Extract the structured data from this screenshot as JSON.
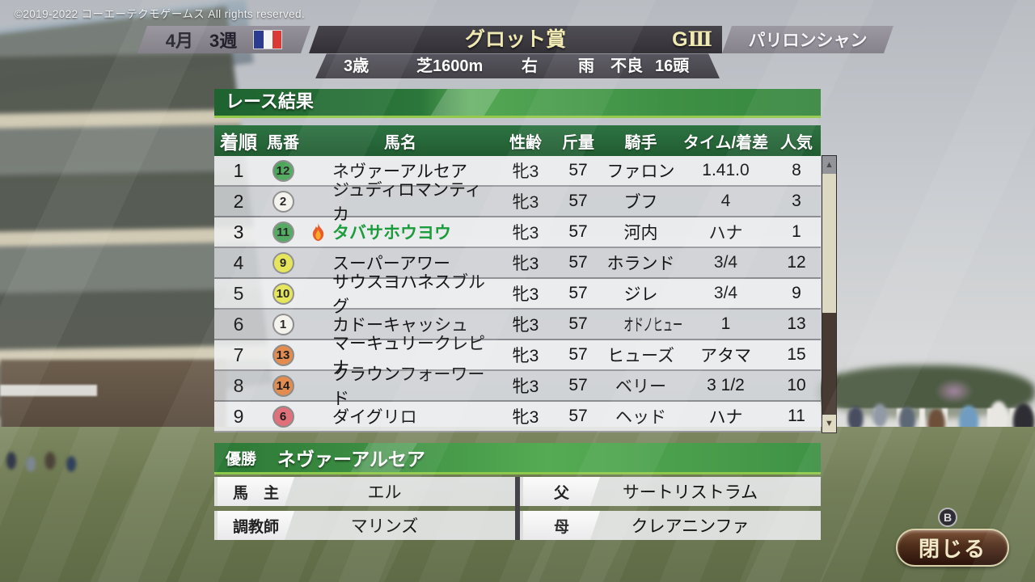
{
  "copyright": "©2019-2022 コーエーテクモゲームス All rights reserved.",
  "header": {
    "month": "4月",
    "week": "3週",
    "flag": "france-flag",
    "race_name": "グロット賞",
    "grade_letter": "G",
    "grade_numeral": "Ⅲ",
    "venue": "パリロンシャン",
    "conditions": [
      "3歳",
      "芝1600m",
      "右",
      "雨",
      "不良",
      "16頭"
    ]
  },
  "results": {
    "title": "レース結果",
    "columns": [
      "着順",
      "馬番",
      "馬名",
      "性齢",
      "斤量",
      "騎手",
      "タイム/着差",
      "人気"
    ],
    "rows": [
      {
        "rank": "1",
        "num": "12",
        "circle_color": "#4ba65a",
        "name": "ネヴァーアルセア",
        "sex_age": "牝3",
        "weight": "57",
        "jockey": "ファロン",
        "time_margin": "1.41.0",
        "popularity": "8",
        "owned": false
      },
      {
        "rank": "2",
        "num": "2",
        "circle_color": "#f4f2ec",
        "name": "ジュディロマンティカ",
        "sex_age": "牝3",
        "weight": "57",
        "jockey": "ブフ",
        "time_margin": "4",
        "popularity": "3",
        "owned": false
      },
      {
        "rank": "3",
        "num": "11",
        "circle_color": "#4ba65a",
        "name": "タバサホウヨウ",
        "sex_age": "牝3",
        "weight": "57",
        "jockey": "河内",
        "time_margin": "ハナ",
        "popularity": "1",
        "owned": true
      },
      {
        "rank": "4",
        "num": "9",
        "circle_color": "#e4e553",
        "name": "スーパーアワー",
        "sex_age": "牝3",
        "weight": "57",
        "jockey": "ホランド",
        "time_margin": "3/4",
        "popularity": "12",
        "owned": false
      },
      {
        "rank": "5",
        "num": "10",
        "circle_color": "#e4e553",
        "name": "サウスヨハネスブルグ",
        "sex_age": "牝3",
        "weight": "57",
        "jockey": "ジレ",
        "time_margin": "3/4",
        "popularity": "9",
        "owned": false
      },
      {
        "rank": "6",
        "num": "1",
        "circle_color": "#f4f2ec",
        "name": "カドーキャッシュ",
        "sex_age": "牝3",
        "weight": "57",
        "jockey": "オドノヒュー",
        "time_margin": "1",
        "popularity": "13",
        "owned": false,
        "jockey_condensed": true
      },
      {
        "rank": "7",
        "num": "13",
        "circle_color": "#e28c4f",
        "name": "マーキュリークレピナ",
        "sex_age": "牝3",
        "weight": "57",
        "jockey": "ヒューズ",
        "time_margin": "アタマ",
        "popularity": "15",
        "owned": false
      },
      {
        "rank": "8",
        "num": "14",
        "circle_color": "#e28c4f",
        "name": "クラウンフォーワード",
        "sex_age": "牝3",
        "weight": "57",
        "jockey": "ベリー",
        "time_margin": "3 1/2",
        "popularity": "10",
        "owned": false
      },
      {
        "rank": "9",
        "num": "6",
        "circle_color": "#e0717b",
        "name": "ダイグリロ",
        "sex_age": "牝3",
        "weight": "57",
        "jockey": "ヘッド",
        "time_margin": "ハナ",
        "popularity": "11",
        "owned": false
      }
    ]
  },
  "winner": {
    "label": "優勝",
    "name": "ネヴァーアルセア",
    "owner_label": "馬　主",
    "owner": "エル",
    "trainer_label": "調教師",
    "trainer": "マリンズ",
    "sire_label": "父",
    "sire": "サートリストラム",
    "dam_label": "母",
    "dam": "クレアニンファ"
  },
  "footer": {
    "button_hint": "B",
    "close_label": "閉じる"
  },
  "colors": {
    "accent_green": "#3e9045",
    "owned_green": "#1d9c3e",
    "grade_text": "#f0e9b2"
  }
}
